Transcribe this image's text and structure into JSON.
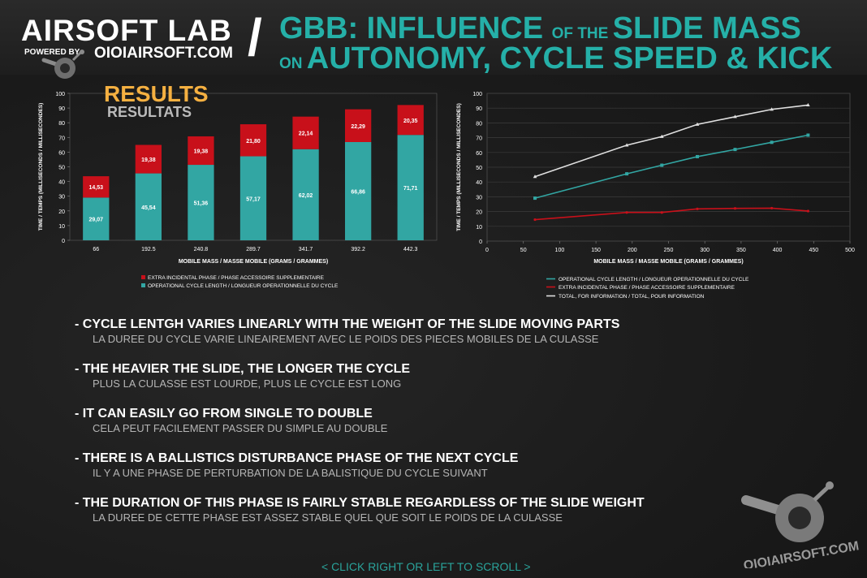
{
  "header": {
    "brand_title": "AIRSOFT LAB",
    "powered_by": "POWERED BY",
    "brand_site": "OIOIAIRSOFT.COM",
    "slash": "/",
    "title_1a": "GBB: INFLUENCE ",
    "title_1b": "OF THE ",
    "title_1c": "SLIDE MASS",
    "title_2a": "ON ",
    "title_2b": "AUTONOMY, CYCLE SPEED & KICK"
  },
  "results": {
    "title": "RESULTS",
    "subtitle": "RESULTATS"
  },
  "colors": {
    "teal": "#32a6a3",
    "red": "#c8101a",
    "white_line": "#e0e0e0",
    "accent": "#25b0a8"
  },
  "chart_data": [
    {
      "type": "bar",
      "stacked": true,
      "categories": [
        "66",
        "192.5",
        "240.8",
        "289.7",
        "341.7",
        "392.2",
        "442.3"
      ],
      "series": [
        {
          "name": "OPERATIONAL CYCLE LENGTH / LONGUEUR OPERATIONNELLE DU CYCLE",
          "values": [
            29.07,
            45.54,
            51.36,
            57.17,
            62.02,
            66.86,
            71.71
          ],
          "labels": [
            "29,07",
            "45,54",
            "51,36",
            "57,17",
            "62,02",
            "66,86",
            "71,71"
          ]
        },
        {
          "name": "EXTRA INCIDENTAL PHASE / PHASE ACCESSOIRE SUPPLEMENTAIRE",
          "values": [
            14.53,
            19.38,
            19.38,
            21.8,
            22.14,
            22.29,
            20.35
          ],
          "labels": [
            "14,53",
            "19,38",
            "19,38",
            "21,80",
            "22,14",
            "22,29",
            "20,35"
          ]
        }
      ],
      "legend": [
        "EXTRA INCIDENTAL PHASE / PHASE ACCESSOIRE SUPPLEMENTAIRE",
        "OPERATIONAL CYCLE LENGTH / LONGUEUR OPERATIONNELLE DU CYCLE"
      ],
      "xlabel": "MOBILE MASS / MASSE MOBILE (GRAMS / GRAMMES)",
      "ylabel": "TIME / TEMPS (MILLISECONDS / MILLISECONDES)",
      "ylim": [
        0,
        100
      ],
      "yticks": [
        0,
        10,
        20,
        30,
        40,
        50,
        60,
        70,
        80,
        90,
        100
      ]
    },
    {
      "type": "line",
      "x": [
        66,
        192.5,
        240.8,
        289.7,
        341.7,
        392.2,
        442.3
      ],
      "series": [
        {
          "name": "OPERATIONAL CYCLE LENGTH / LONGUEUR OPERATIONNELLE DU CYCLE",
          "values": [
            29.07,
            45.54,
            51.36,
            57.17,
            62.02,
            66.86,
            71.71
          ]
        },
        {
          "name": "EXTRA INCIDENTAL PHASE / PHASE ACCESSOIRE SUPPLEMENTAIRE",
          "values": [
            14.53,
            19.38,
            19.38,
            21.8,
            22.14,
            22.29,
            20.35
          ]
        },
        {
          "name": "TOTAL, FOR INFORMATION / TOTAL, POUR INFORMATION",
          "values": [
            43.6,
            64.92,
            70.74,
            78.97,
            84.16,
            89.15,
            92.06
          ]
        }
      ],
      "xlabel": "MOBILE MASS / MASSE MOBILE (GRAMS / GRAMMES)",
      "ylabel": "TIME / TEMPS (MILLISECONDS / MILLISECONDES)",
      "xlim": [
        0,
        500
      ],
      "ylim": [
        0,
        100
      ],
      "xticks": [
        0,
        50,
        100,
        150,
        200,
        250,
        300,
        350,
        400,
        450,
        500
      ],
      "yticks": [
        0,
        10,
        20,
        30,
        40,
        50,
        60,
        70,
        80,
        90,
        100
      ],
      "grid": true
    }
  ],
  "bullets": [
    {
      "en": "- CYCLE LENTGH VARIES LINEARLY WITH THE WEIGHT OF THE SLIDE MOVING PARTS",
      "fr": "LA DUREE DU CYCLE VARIE LINEAIREMENT AVEC LE POIDS DES PIECES MOBILES DE LA CULASSE"
    },
    {
      "en": "- THE HEAVIER THE SLIDE, THE LONGER THE CYCLE",
      "fr": "PLUS LA CULASSE EST LOURDE, PLUS LE CYCLE EST LONG"
    },
    {
      "en": "- IT CAN EASILY GO FROM SINGLE TO DOUBLE",
      "fr": "CELA PEUT FACILEMENT PASSER DU SIMPLE AU DOUBLE"
    },
    {
      "en": "- THERE IS A BALLISTICS DISTURBANCE PHASE OF THE NEXT CYCLE",
      "fr": "IL Y A UNE PHASE DE PERTURBATION DE LA BALISTIQUE DU CYCLE SUIVANT"
    },
    {
      "en": "- THE DURATION OF THIS PHASE IS FAIRLY STABLE REGARDLESS OF THE SLIDE WEIGHT",
      "fr": "LA DUREE DE CETTE PHASE EST ASSEZ STABLE QUEL QUE SOIT LE POIDS DE LA CULASSE"
    }
  ],
  "footer": {
    "nav": "< CLICK RIGHT OR LEFT TO SCROLL >",
    "logo_text": "OIOIAIRSOFT.COM"
  }
}
